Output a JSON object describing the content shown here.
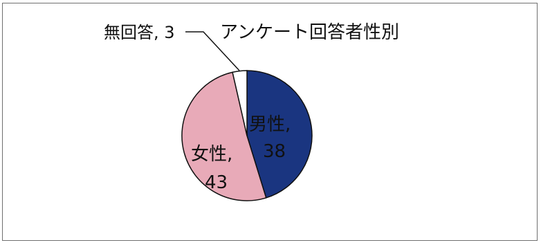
{
  "chart_data": {
    "type": "pie",
    "title": "アンケート回答者性別",
    "categories": [
      "男性",
      "女性",
      "無回答"
    ],
    "values": [
      38,
      43,
      3
    ],
    "colors": [
      "#1a3580",
      "#e8aab8",
      "#ffffff"
    ],
    "data_labels": [
      {
        "category": "男性",
        "value": "38"
      },
      {
        "category": "女性",
        "value": "43"
      },
      {
        "category": "無回答",
        "value": "3"
      }
    ],
    "legend": "none"
  }
}
